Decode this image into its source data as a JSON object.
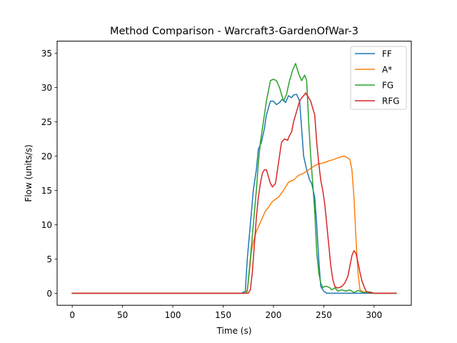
{
  "chart_data": {
    "type": "line",
    "title": "Method Comparison - Warcraft3-GardenOfWar-3",
    "xlabel": "Time (s)",
    "ylabel": "Flow (units/s)",
    "xlim": [
      -15,
      337
    ],
    "ylim": [
      -1.75,
      36.75
    ],
    "xticks": [
      0,
      50,
      100,
      150,
      200,
      250,
      300
    ],
    "yticks": [
      0,
      5,
      10,
      15,
      20,
      25,
      30,
      35
    ],
    "grid": false,
    "legend_position": "top-right",
    "series": [
      {
        "name": "FF",
        "color": "#1f77b4",
        "points": [
          [
            0,
            0
          ],
          [
            168,
            0
          ],
          [
            172,
            0.3
          ],
          [
            174,
            5
          ],
          [
            177,
            10
          ],
          [
            180,
            15
          ],
          [
            183,
            18
          ],
          [
            185,
            21
          ],
          [
            188,
            22
          ],
          [
            191,
            24
          ],
          [
            193,
            26
          ],
          [
            195,
            27
          ],
          [
            197,
            28
          ],
          [
            200,
            28
          ],
          [
            203,
            27.5
          ],
          [
            206,
            27.8
          ],
          [
            209,
            28.3
          ],
          [
            212,
            27.8
          ],
          [
            215,
            28.8
          ],
          [
            218,
            28.5
          ],
          [
            220,
            28.9
          ],
          [
            223,
            29
          ],
          [
            226,
            28
          ],
          [
            228,
            24
          ],
          [
            230,
            20
          ],
          [
            233,
            18
          ],
          [
            236,
            16.5
          ],
          [
            238,
            16
          ],
          [
            241,
            14
          ],
          [
            243,
            10
          ],
          [
            245,
            5
          ],
          [
            247,
            1
          ],
          [
            250,
            0.3
          ],
          [
            253,
            0
          ],
          [
            322,
            0
          ]
        ]
      },
      {
        "name": "A*",
        "color": "#ff7f0e",
        "points": [
          [
            0,
            0
          ],
          [
            172,
            0
          ],
          [
            174,
            0.5
          ],
          [
            176,
            3
          ],
          [
            178,
            6
          ],
          [
            180,
            7.5
          ],
          [
            183,
            9
          ],
          [
            186,
            10
          ],
          [
            189,
            11
          ],
          [
            192,
            12
          ],
          [
            195,
            12.5
          ],
          [
            198,
            13.2
          ],
          [
            200,
            13.5
          ],
          [
            205,
            14
          ],
          [
            210,
            15
          ],
          [
            215,
            16.2
          ],
          [
            220,
            16.5
          ],
          [
            225,
            17.2
          ],
          [
            230,
            17.5
          ],
          [
            235,
            18
          ],
          [
            240,
            18.5
          ],
          [
            245,
            18.9
          ],
          [
            250,
            19
          ],
          [
            255,
            19.3
          ],
          [
            260,
            19.5
          ],
          [
            265,
            19.8
          ],
          [
            270,
            20
          ],
          [
            273,
            19.8
          ],
          [
            276,
            19.5
          ],
          [
            278,
            18
          ],
          [
            280,
            14
          ],
          [
            282,
            8
          ],
          [
            284,
            3
          ],
          [
            286,
            0.5
          ],
          [
            289,
            0.2
          ],
          [
            295,
            0.1
          ],
          [
            300,
            0
          ],
          [
            322,
            0
          ]
        ]
      },
      {
        "name": "FG",
        "color": "#2ca02c",
        "points": [
          [
            0,
            0
          ],
          [
            172,
            0
          ],
          [
            174,
            0.3
          ],
          [
            177,
            5
          ],
          [
            180,
            10
          ],
          [
            183,
            15
          ],
          [
            185,
            19
          ],
          [
            187,
            22
          ],
          [
            189,
            24
          ],
          [
            191,
            26
          ],
          [
            193,
            28
          ],
          [
            195,
            29.5
          ],
          [
            197,
            31
          ],
          [
            200,
            31.2
          ],
          [
            203,
            31
          ],
          [
            206,
            30
          ],
          [
            208,
            29
          ],
          [
            210,
            28
          ],
          [
            213,
            29
          ],
          [
            216,
            31
          ],
          [
            219,
            32.5
          ],
          [
            222,
            33.5
          ],
          [
            225,
            32
          ],
          [
            228,
            31
          ],
          [
            231,
            31.8
          ],
          [
            233,
            31
          ],
          [
            235,
            25
          ],
          [
            237,
            20
          ],
          [
            239,
            16
          ],
          [
            241,
            12
          ],
          [
            243,
            6
          ],
          [
            245,
            3
          ],
          [
            247,
            1.5
          ],
          [
            249,
            0.8
          ],
          [
            251,
            1
          ],
          [
            253,
            1
          ],
          [
            256,
            0.8
          ],
          [
            258,
            0.5
          ],
          [
            261,
            0.8
          ],
          [
            264,
            0.3
          ],
          [
            268,
            0.5
          ],
          [
            272,
            0.3
          ],
          [
            276,
            0.5
          ],
          [
            280,
            0.1
          ],
          [
            284,
            0.4
          ],
          [
            290,
            0.1
          ],
          [
            296,
            0.2
          ],
          [
            300,
            0
          ],
          [
            322,
            0
          ]
        ]
      },
      {
        "name": "RFG",
        "color": "#d62728",
        "points": [
          [
            0,
            0
          ],
          [
            175,
            0
          ],
          [
            177,
            0.5
          ],
          [
            179,
            3
          ],
          [
            181,
            7
          ],
          [
            183,
            11
          ],
          [
            185,
            14
          ],
          [
            187,
            16
          ],
          [
            189,
            17.5
          ],
          [
            191,
            18
          ],
          [
            193,
            18
          ],
          [
            195,
            17
          ],
          [
            197,
            16
          ],
          [
            199,
            15.5
          ],
          [
            202,
            16
          ],
          [
            204,
            18
          ],
          [
            206,
            20
          ],
          [
            208,
            22
          ],
          [
            211,
            22.5
          ],
          [
            214,
            22.3
          ],
          [
            216,
            23
          ],
          [
            218,
            23.5
          ],
          [
            220,
            25
          ],
          [
            222,
            26
          ],
          [
            224,
            27
          ],
          [
            226,
            28
          ],
          [
            228,
            28.5
          ],
          [
            230,
            28.8
          ],
          [
            232,
            29.2
          ],
          [
            235,
            28.5
          ],
          [
            237,
            28
          ],
          [
            239,
            27
          ],
          [
            241,
            26
          ],
          [
            243,
            22
          ],
          [
            245,
            19
          ],
          [
            247,
            16.5
          ],
          [
            249,
            15
          ],
          [
            251,
            13
          ],
          [
            253,
            10
          ],
          [
            255,
            7
          ],
          [
            257,
            4
          ],
          [
            259,
            2
          ],
          [
            261,
            1
          ],
          [
            263,
            0.8
          ],
          [
            265,
            0.8
          ],
          [
            268,
            1
          ],
          [
            271,
            1.5
          ],
          [
            274,
            2.5
          ],
          [
            276,
            4
          ],
          [
            278,
            5.5
          ],
          [
            280,
            6.2
          ],
          [
            282,
            5.8
          ],
          [
            284,
            4.5
          ],
          [
            286,
            3
          ],
          [
            288,
            1.8
          ],
          [
            290,
            1
          ],
          [
            292,
            0.3
          ],
          [
            295,
            0.1
          ],
          [
            300,
            0
          ],
          [
            322,
            0
          ]
        ]
      }
    ]
  }
}
